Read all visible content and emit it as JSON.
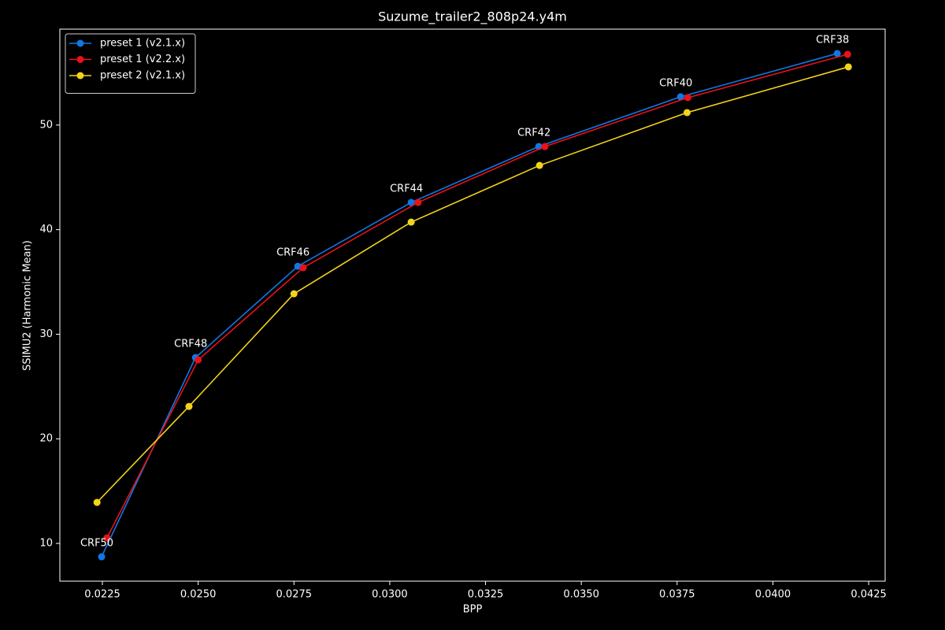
{
  "chart_data": {
    "type": "line",
    "title": "Suzume_trailer2_808p24.y4m",
    "xlabel": "BPP",
    "ylabel": "SSIMU2 (Harmonic Mean)",
    "xlim": [
      0.02139,
      0.04293
    ],
    "ylim": [
      6.39,
      59.17
    ],
    "xticks": [
      0.0225,
      {
        "value": 0.025,
        "label": "0.0250"
      },
      0.0275,
      {
        "value": 0.03,
        "label": "0.0300"
      },
      0.0325,
      {
        "value": 0.035,
        "label": "0.0350"
      },
      0.0375,
      {
        "value": 0.04,
        "label": "0.0400"
      },
      0.0425
    ],
    "yticks": [
      10,
      20,
      30,
      40,
      50
    ],
    "grid": false,
    "legend": "upper left",
    "annotations": [
      "CRF50",
      "CRF48",
      "CRF46",
      "CRF44",
      "CRF42",
      "CRF40",
      "CRF38"
    ],
    "series": [
      {
        "name": "preset 1 (v2.1.x)",
        "color": "#0f78e6",
        "x": [
          0.02248,
          0.02493,
          0.0276,
          0.03056,
          0.03389,
          0.03759,
          0.04168
        ],
        "values": [
          8.72,
          27.77,
          36.5,
          42.6,
          47.95,
          52.7,
          56.84
        ]
      },
      {
        "name": "preset 1 (v2.2.x)",
        "color": "#e8121b",
        "x": [
          0.02262,
          0.025,
          0.02774,
          0.03074,
          0.03405,
          0.03778,
          0.04195
        ],
        "values": [
          10.53,
          27.55,
          36.36,
          42.6,
          47.95,
          52.62,
          56.76
        ]
      },
      {
        "name": "preset 2 (v2.1.x)",
        "color": "#f2d41a",
        "x": [
          0.02236,
          0.02476,
          0.0275,
          0.03056,
          0.03391,
          0.03776,
          0.04197
        ],
        "values": [
          13.92,
          23.1,
          33.87,
          40.72,
          46.14,
          51.19,
          55.56
        ]
      }
    ]
  }
}
